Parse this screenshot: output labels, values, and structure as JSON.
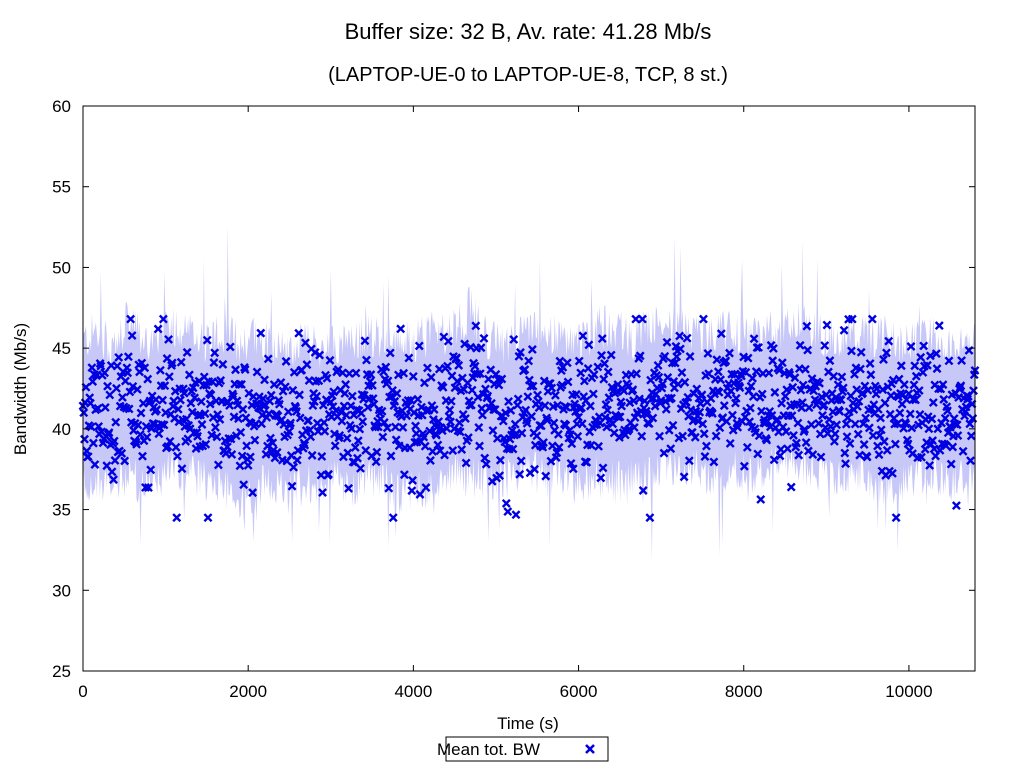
{
  "chart_data": {
    "type": "scatter",
    "title": "Buffer size: 32 B, Av. rate: 41.28 Mb/s",
    "subtitle": "(LAPTOP-UE-0 to LAPTOP-UE-8, TCP, 8 st.)",
    "xlabel": "Time (s)",
    "ylabel": "Bandwidth (Mb/s)",
    "xlim": [
      0,
      10800
    ],
    "ylim": [
      25,
      60
    ],
    "x_ticks": [
      "0",
      "2000",
      "4000",
      "6000",
      "8000",
      "10000"
    ],
    "y_ticks": [
      "25",
      "30",
      "35",
      "40",
      "45",
      "50",
      "55",
      "60"
    ],
    "grid": false,
    "legend": {
      "position": "bottom-center",
      "entries": [
        "Mean tot. BW"
      ]
    },
    "series": [
      {
        "name": "Mean tot. BW",
        "marker": "x",
        "color": "#0000e0",
        "band_color": "#c8c8f8",
        "x": [
          0,
          180,
          360,
          540,
          720,
          900,
          1080,
          1260,
          1440,
          1620,
          1800,
          1980,
          2160,
          2340,
          2520,
          2700,
          2880,
          3060,
          3240,
          3420,
          3600,
          3780,
          3960,
          4140,
          4320,
          4500,
          4680,
          4860,
          5040,
          5220,
          5400,
          5580,
          5760,
          5940,
          6120,
          6300,
          6480,
          6660,
          6840,
          7020,
          7200,
          7380,
          7560,
          7740,
          7920,
          8100,
          8280,
          8460,
          8640,
          8820,
          9000,
          9180,
          9360,
          9540,
          9720,
          9900,
          10080,
          10260,
          10440,
          10620,
          10800
        ],
        "y": [
          41.0,
          41.5,
          40.5,
          41.8,
          41.2,
          40.8,
          42.0,
          41.6,
          41.0,
          41.4,
          40.9,
          40.2,
          41.1,
          40.6,
          40.4,
          41.0,
          40.8,
          41.2,
          40.7,
          41.5,
          41.3,
          40.6,
          40.8,
          40.9,
          41.1,
          41.9,
          42.2,
          41.4,
          41.0,
          41.3,
          41.8,
          41.6,
          41.2,
          41.0,
          41.4,
          41.7,
          41.3,
          41.2,
          41.6,
          41.9,
          42.1,
          41.8,
          41.5,
          41.7,
          41.6,
          41.4,
          41.8,
          42.0,
          42.3,
          41.9,
          41.5,
          41.2,
          41.6,
          41.3,
          41.0,
          40.9,
          41.2,
          41.5,
          41.0,
          41.2,
          41.4
        ],
        "spread": [
          5.5,
          5.8,
          5.2,
          6.0,
          5.6,
          5.4,
          5.7,
          5.5,
          5.3,
          5.6,
          5.9,
          6.5,
          5.8,
          5.5,
          5.6,
          5.4,
          5.3,
          5.2,
          5.5,
          5.6,
          5.4,
          5.7,
          5.8,
          6.2,
          5.9,
          5.6,
          6.4,
          5.5,
          5.3,
          5.2,
          5.4,
          5.6,
          5.5,
          5.3,
          5.6,
          5.8,
          5.9,
          5.5,
          6.1,
          5.4,
          5.3,
          5.2,
          5.4,
          5.5,
          5.3,
          5.2,
          5.3,
          5.2,
          5.4,
          5.5,
          5.3,
          5.2,
          5.3,
          5.4,
          5.8,
          5.3,
          5.2,
          5.2,
          5.3,
          5.4,
          5.2
        ]
      }
    ]
  }
}
